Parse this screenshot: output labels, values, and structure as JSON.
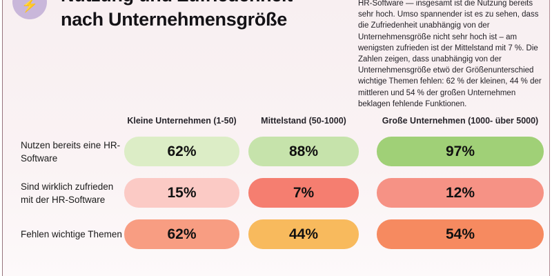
{
  "header": {
    "title_line1": "Nutzung und Zufriedenheit",
    "title_line2": "nach Unternehmensgröße",
    "icon": "lightning-bolt-emoji",
    "icon_circle_color": "#c9b7da"
  },
  "intro": {
    "text": "HR-Software — insgesamt ist die Nutzung bereits sehr hoch. Umso spannender ist es zu sehen, dass die Zufriedenheit unabhängig von der Unternehmensgröße nicht sehr hoch ist – am wenigsten zufrieden ist der Mittelstand mit 7 %. Die Zahlen zeigen, dass unabhängig von der Unternehmensgröße etwö der Größenunterschied wichtige Themen fehlen: 62 % der kleinen, 44 % der mittleren und 54 % der großen Unternehmen beklagen fehlende Funktionen."
  },
  "table": {
    "column_headers": [
      "Kleine Unternehmen (1-50)",
      "Mittelstand (50-1000)",
      "Große Unternehmen (1000- über 5000)"
    ],
    "rows": [
      {
        "label": "Nutzen bereits eine HR-Software",
        "cells": [
          {
            "value": "62%",
            "color": "#dcedc6"
          },
          {
            "value": "88%",
            "color": "#c6e3ab"
          },
          {
            "value": "97%",
            "color": "#a0d077"
          }
        ]
      },
      {
        "label": "Sind wirklich zufrieden mit der HR-Software",
        "cells": [
          {
            "value": "15%",
            "color": "#fbcac5"
          },
          {
            "value": "7%",
            "color": "#f57e70"
          },
          {
            "value": "12%",
            "color": "#f69285"
          }
        ]
      },
      {
        "label": "Fehlen wichtige Themen",
        "cells": [
          {
            "value": "62%",
            "color": "#f89d82"
          },
          {
            "value": "44%",
            "color": "#f8ba5d"
          },
          {
            "value": "54%",
            "color": "#f68a60"
          }
        ]
      }
    ]
  },
  "colors": {
    "background": "#faf3f4",
    "frame_border": "#96737c",
    "title_text": "#141216"
  },
  "chart_data": {
    "type": "heatmap",
    "title": "Nutzung und Zufriedenheit nach Unternehmensgröße",
    "columns": [
      "Kleine Unternehmen (1-50)",
      "Mittelstand (50-1000)",
      "Große Unternehmen (1000- über 5000)"
    ],
    "rows": [
      "Nutzen bereits eine HR-Software",
      "Sind wirklich zufrieden mit der HR-Software",
      "Fehlen wichtige Themen"
    ],
    "values": [
      [
        62,
        88,
        97
      ],
      [
        15,
        7,
        12
      ],
      [
        62,
        44,
        54
      ]
    ],
    "value_unit": "%",
    "legend": "none",
    "color_semantics": "green = positive/high, red-orange = negative/low"
  }
}
